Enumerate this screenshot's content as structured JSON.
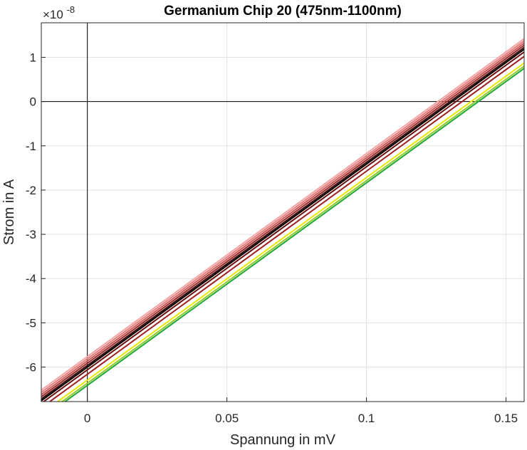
{
  "chart_data": {
    "type": "line",
    "title": "Germanium Chip 20 (475nm-1100nm)",
    "xlabel": "Spannung in mV",
    "ylabel": "Strom in A",
    "y_exponent_base": "×10",
    "y_exponent_power": "-8",
    "xlim": [
      -0.0165,
      0.1565
    ],
    "ylim": [
      -6.78,
      1.78
    ],
    "x_ticks": [
      0,
      0.05,
      0.1,
      0.15
    ],
    "x_tick_labels": [
      "0",
      "0.05",
      "0.1",
      "0.15"
    ],
    "y_ticks": [
      1,
      0,
      -1,
      -2,
      -3,
      -4,
      -5,
      -6
    ],
    "y_tick_labels": [
      "1",
      "0",
      "-1",
      "-2",
      "-3",
      "-4",
      "-5",
      "-6"
    ],
    "grid": true,
    "zero_lines": true,
    "legend": "none",
    "series": [
      {
        "x": [
          -0.0165,
          0.1565
        ],
        "y": [
          -6.52,
          1.42
        ],
        "color": "#f4a6a6"
      },
      {
        "x": [
          -0.0165,
          0.1565
        ],
        "y": [
          -6.57,
          1.37
        ],
        "color": "#e77e7e"
      },
      {
        "x": [
          -0.0165,
          0.1565
        ],
        "y": [
          -6.62,
          1.32
        ],
        "color": "#c85a5a"
      },
      {
        "x": [
          -0.0165,
          0.1565
        ],
        "y": [
          -6.67,
          1.27
        ],
        "color": "#9b2a2a"
      },
      {
        "x": [
          -0.0165,
          0.1565
        ],
        "y": [
          -6.72,
          1.22
        ],
        "color": "#3a0c0c"
      },
      {
        "x": [
          -0.0165,
          0.1565
        ],
        "y": [
          -6.76,
          1.18
        ],
        "color": "#000000"
      },
      {
        "x": [
          -0.0165,
          0.1565
        ],
        "y": [
          -6.82,
          1.12
        ],
        "color": "#6b0d0d"
      },
      {
        "x": [
          -0.0165,
          0.1565
        ],
        "y": [
          -6.92,
          1.02
        ],
        "color": "#a01e1e"
      },
      {
        "x": [
          -0.0165,
          0.1565
        ],
        "y": [
          -7.05,
          0.87
        ],
        "color": "#e8e800"
      },
      {
        "x": [
          -0.0165,
          0.1565
        ],
        "y": [
          -7.12,
          0.8
        ],
        "color": "#8fc92e"
      },
      {
        "x": [
          -0.0165,
          0.1565
        ],
        "y": [
          -7.17,
          0.75
        ],
        "color": "#20a83a"
      }
    ]
  }
}
